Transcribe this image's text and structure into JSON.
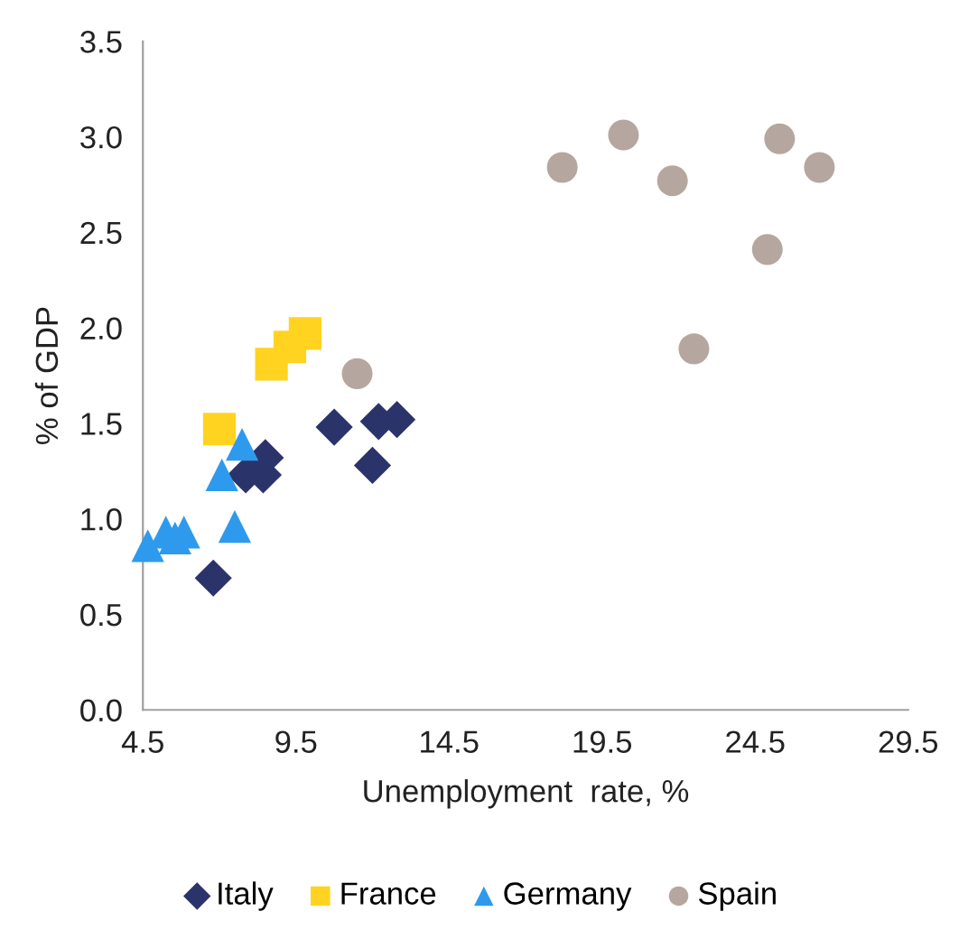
{
  "chart_data": {
    "type": "scatter",
    "xlabel": "Unemployment  rate, %",
    "ylabel": "% of GDP",
    "xlim": [
      4.5,
      29.5
    ],
    "xticks": [
      4.5,
      9.5,
      14.5,
      19.5,
      24.5,
      29.5
    ],
    "ylim": [
      0,
      3.5
    ],
    "yticks": [
      {
        "value": 0,
        "label": "0.0"
      },
      {
        "value": 0.5,
        "label": "0.5"
      },
      {
        "value": 1,
        "label": "1.0"
      },
      {
        "value": 1.5,
        "label": "1.5"
      },
      {
        "value": 2,
        "label": "2.0"
      },
      {
        "value": 2.5,
        "label": "2.5"
      },
      {
        "value": 3,
        "label": "3.0"
      },
      {
        "value": 3.5,
        "label": "3.5"
      }
    ],
    "grid": false,
    "legend": "bottom",
    "series": [
      {
        "name": "Italy",
        "color": "#2b336b",
        "marker": "diamond",
        "x": [
          6.8,
          10.75,
          12.2,
          12.8,
          12.0,
          7.86,
          8.43,
          8.5
        ],
        "values": [
          0.69,
          1.48,
          1.51,
          1.52,
          1.28,
          1.23,
          1.23,
          1.32
        ]
      },
      {
        "name": "France",
        "color": "#ffd320",
        "marker": "square",
        "x": [
          7.0,
          8.7,
          9.3,
          9.8
        ],
        "values": [
          1.47,
          1.81,
          1.9,
          1.97
        ]
      },
      {
        "name": "Germany",
        "color": "#2e9aee",
        "marker": "triangle",
        "x": [
          4.66,
          5.25,
          5.55,
          5.84,
          7.5,
          7.08,
          7.74
        ],
        "values": [
          0.86,
          0.93,
          0.9,
          0.93,
          0.96,
          1.23,
          1.39
        ]
      },
      {
        "name": "Spain",
        "color": "#b5a79f",
        "marker": "circle",
        "x": [
          18.2,
          20.2,
          21.8,
          25.3,
          26.6,
          24.9,
          22.5,
          11.5
        ],
        "values": [
          2.84,
          3.01,
          2.77,
          2.99,
          2.84,
          2.41,
          1.89,
          1.76
        ]
      }
    ]
  }
}
